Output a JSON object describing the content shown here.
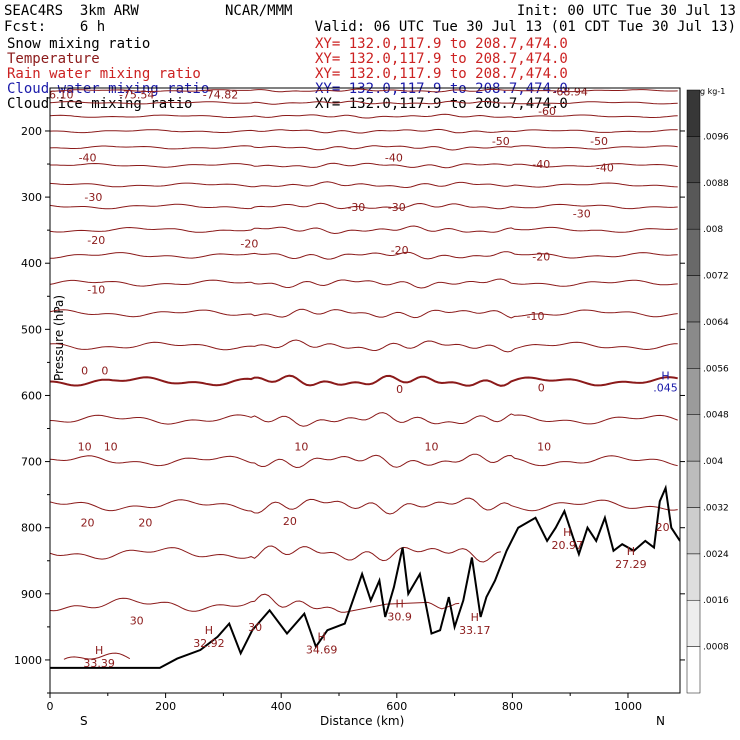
{
  "header": {
    "model": "SEAC4RS  3km ARW",
    "center": "NCAR/MMM",
    "init": "Init: 00 UTC Tue 30 Jul 13",
    "fcst": "Fcst:    6 h",
    "valid": "Valid: 06 UTC Tue 30 Jul 13 (01 CDT Tue 30 Jul 13)"
  },
  "fields": [
    {
      "label": "Snow mixing ratio",
      "xy": "XY= 132.0,117.9 to 208.7,474.0",
      "color": "#000000"
    },
    {
      "label": "Temperature",
      "xy": "XY= 132.0,117.9 to 208.7,474.0",
      "color": "#8b1a1a"
    },
    {
      "label": "Rain water mixing ratio",
      "xy": "XY= 132.0,117.9 to 208.7,474.0",
      "color": "#cc2222"
    },
    {
      "label": "Cloud water mixing ratio",
      "xy": "XY= 132.0,117.9 to 208.7,474.0",
      "color": "#1a1aaa"
    },
    {
      "label": "Cloud ice mixing ratio",
      "xy": "XY= 132.0,117.9 to 208.7,474.0",
      "color": "#000000"
    }
  ],
  "chart_data": {
    "type": "cross-section",
    "xlabel": "Distance (km)",
    "ylabel": "Pressure (hPa)",
    "xlim": [
      0,
      1090
    ],
    "ylim": [
      1050,
      135
    ],
    "xticks": [
      "0",
      "200",
      "400",
      "600",
      "800",
      "1000"
    ],
    "yticks": [
      "200",
      "300",
      "400",
      "500",
      "600",
      "700",
      "800",
      "900",
      "1000"
    ],
    "x_end_labels": {
      "left": "S",
      "right": "N"
    },
    "temperature_isotherms_degC": [
      -75,
      -70,
      -65,
      -60,
      -55,
      -50,
      -45,
      -40,
      -35,
      -30,
      -25,
      -20,
      -15,
      -10,
      -5,
      0,
      5,
      10,
      15,
      20,
      25,
      30
    ],
    "contour_labels": [
      {
        "text": "-76.10",
        "x": 10,
        "p": 145
      },
      {
        "text": "-75.54",
        "x": 150,
        "p": 145
      },
      {
        "text": "-74.82",
        "x": 295,
        "p": 145
      },
      {
        "text": "L",
        "x": 280,
        "p": 128
      },
      {
        "text": "-68.94",
        "x": 900,
        "p": 140
      },
      {
        "text": "-60",
        "x": 860,
        "p": 170
      },
      {
        "text": "-50",
        "x": 780,
        "p": 215
      },
      {
        "text": "-50",
        "x": 950,
        "p": 215
      },
      {
        "text": "-40",
        "x": 65,
        "p": 240
      },
      {
        "text": "-40",
        "x": 595,
        "p": 240
      },
      {
        "text": "-40",
        "x": 850,
        "p": 250
      },
      {
        "text": "-40",
        "x": 960,
        "p": 255
      },
      {
        "text": "-30",
        "x": 75,
        "p": 300
      },
      {
        "text": "-30",
        "x": 530,
        "p": 315
      },
      {
        "text": "-30",
        "x": 600,
        "p": 315
      },
      {
        "text": "-30",
        "x": 920,
        "p": 325
      },
      {
        "text": "-20",
        "x": 80,
        "p": 365
      },
      {
        "text": "-20",
        "x": 345,
        "p": 370
      },
      {
        "text": "-20",
        "x": 605,
        "p": 380
      },
      {
        "text": "-20",
        "x": 850,
        "p": 390
      },
      {
        "text": "-10",
        "x": 80,
        "p": 440
      },
      {
        "text": "-10",
        "x": 840,
        "p": 480
      },
      {
        "text": "0",
        "x": 60,
        "p": 562
      },
      {
        "text": "0",
        "x": 95,
        "p": 562
      },
      {
        "text": "0",
        "x": 605,
        "p": 590
      },
      {
        "text": "0",
        "x": 850,
        "p": 588
      },
      {
        "text": "10",
        "x": 60,
        "p": 677
      },
      {
        "text": "10",
        "x": 105,
        "p": 677
      },
      {
        "text": "10",
        "x": 435,
        "p": 677
      },
      {
        "text": "10",
        "x": 660,
        "p": 677
      },
      {
        "text": "10",
        "x": 855,
        "p": 677
      },
      {
        "text": "20",
        "x": 65,
        "p": 792
      },
      {
        "text": "20",
        "x": 165,
        "p": 792
      },
      {
        "text": "20",
        "x": 415,
        "p": 790
      },
      {
        "text": "20",
        "x": 1060,
        "p": 799
      },
      {
        "text": "30",
        "x": 150,
        "p": 940
      },
      {
        "text": "30",
        "x": 355,
        "p": 950
      }
    ],
    "highs": [
      {
        "x": 85,
        "p": 1000,
        "value": "33.39"
      },
      {
        "x": 275,
        "p": 970,
        "value": "32.92"
      },
      {
        "x": 470,
        "p": 980,
        "value": "34.69"
      },
      {
        "x": 605,
        "p": 930,
        "value": "30.9"
      },
      {
        "x": 735,
        "p": 950,
        "value": "33.17"
      },
      {
        "x": 895,
        "p": 822,
        "value": "20.97"
      },
      {
        "x": 1005,
        "p": 850,
        "value": "27.29"
      }
    ],
    "cloud_water": {
      "label": "H",
      "value": ".045",
      "x": 1065,
      "p": 570
    },
    "terrain_boundary_pressure_hPa": {
      "x_km": [
        0,
        190,
        220,
        260,
        290,
        310,
        330,
        350,
        380,
        410,
        440,
        460,
        480,
        510,
        540,
        555,
        570,
        580,
        595,
        610,
        620,
        640,
        660,
        675,
        690,
        700,
        715,
        730,
        745,
        755,
        770,
        790,
        810,
        840,
        860,
        875,
        890,
        905,
        915,
        930,
        945,
        960,
        975,
        990,
        1010,
        1030,
        1045,
        1055,
        1065,
        1075,
        1090
      ],
      "p_hPa": [
        1012,
        1012,
        998,
        985,
        965,
        945,
        990,
        955,
        925,
        960,
        930,
        980,
        955,
        945,
        870,
        910,
        880,
        935,
        890,
        830,
        900,
        870,
        960,
        955,
        905,
        950,
        910,
        845,
        935,
        905,
        880,
        835,
        800,
        785,
        820,
        800,
        775,
        815,
        840,
        800,
        820,
        785,
        835,
        825,
        835,
        820,
        830,
        760,
        740,
        800,
        820
      ]
    },
    "colorbar": {
      "unit": "g kg-1",
      "ticks": [
        ".0008",
        ".0016",
        ".0024",
        ".0032",
        ".004",
        ".0048",
        ".0056",
        ".0064",
        ".0072",
        ".008",
        ".0088",
        ".0096"
      ]
    }
  }
}
